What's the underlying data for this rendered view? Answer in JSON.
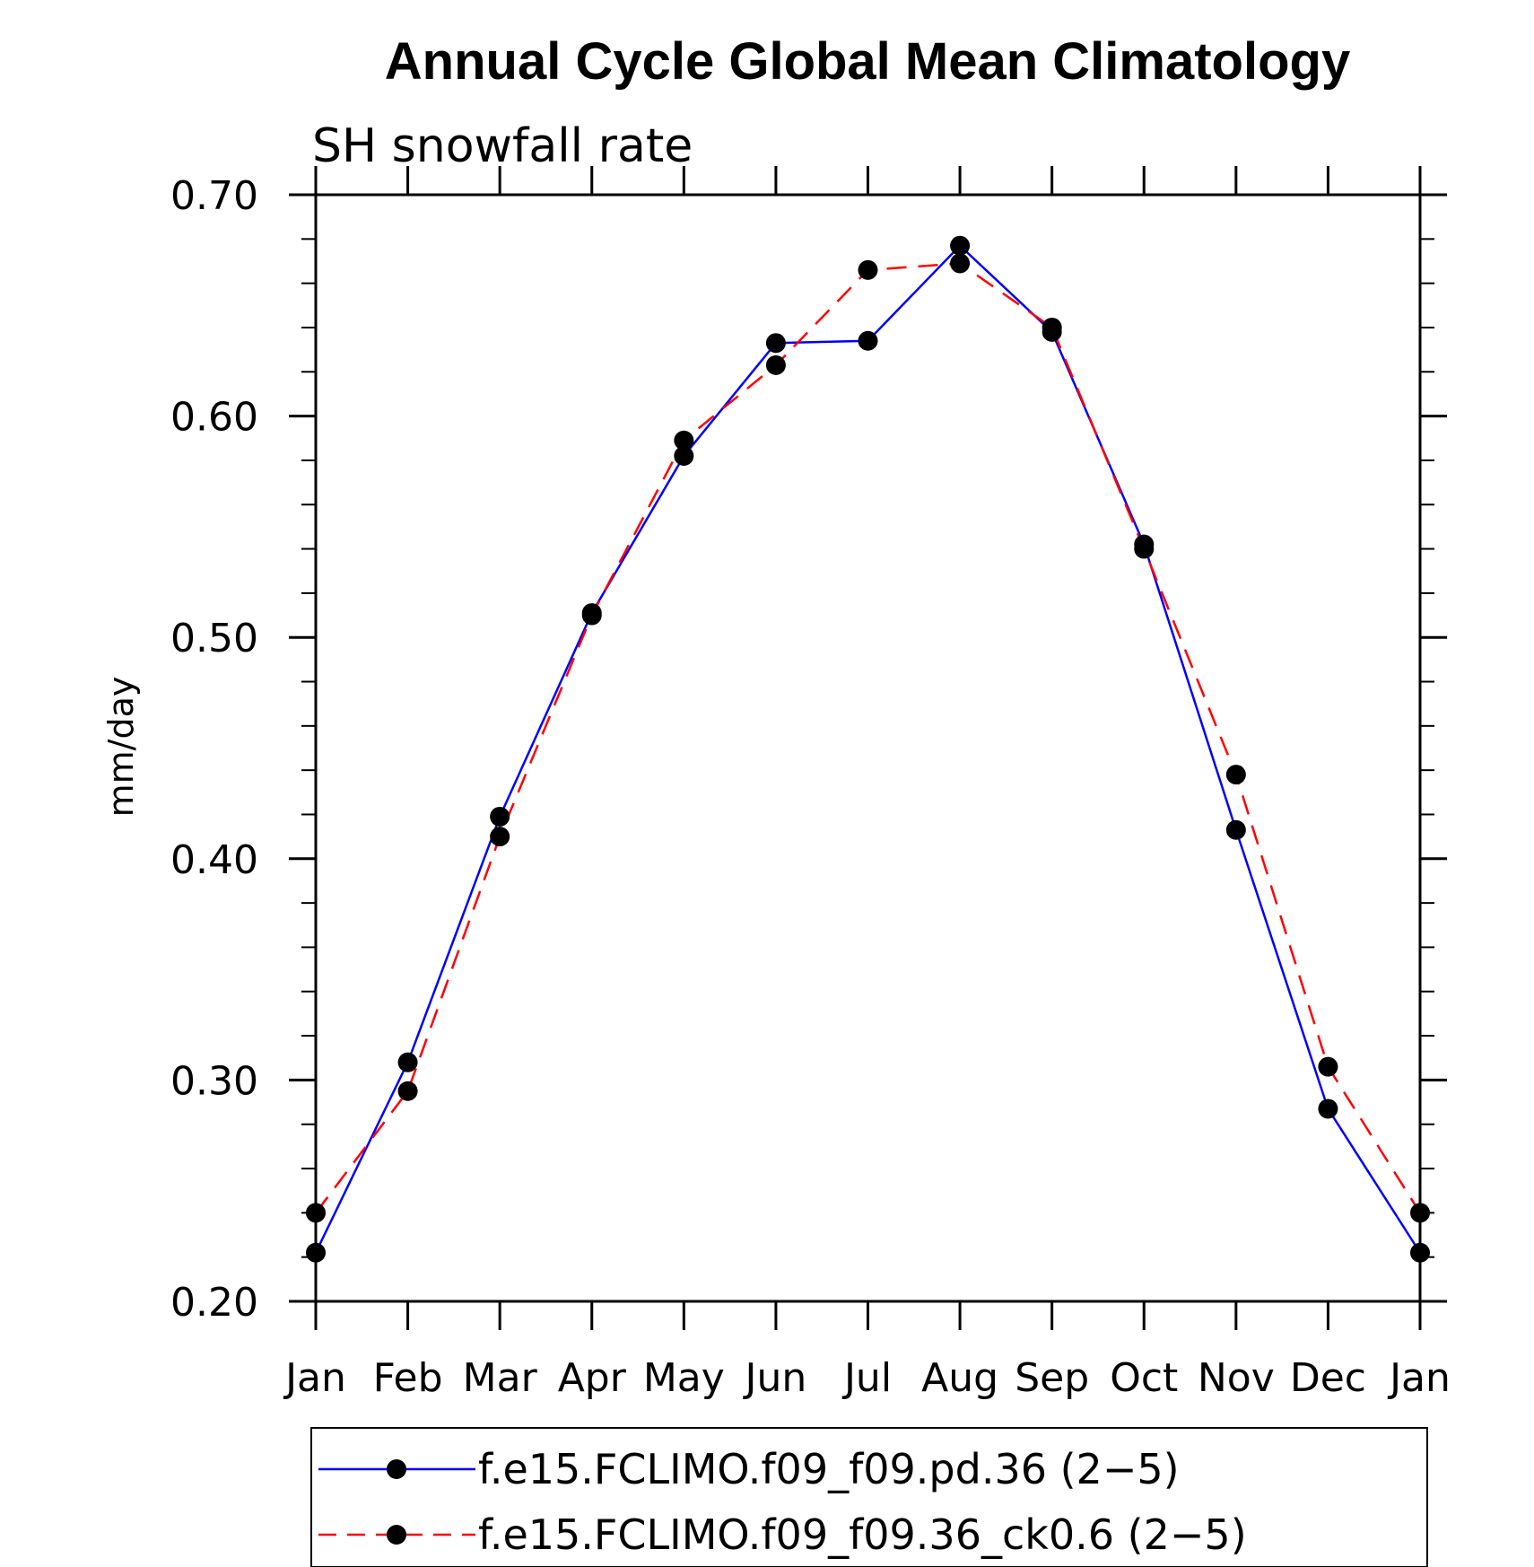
{
  "chart_data": {
    "type": "line",
    "title": "Annual Cycle Global Mean Climatology",
    "subtitle": "SH snowfall rate",
    "ylabel": "mm/day",
    "xlabel": "",
    "categories": [
      "Jan",
      "Feb",
      "Mar",
      "Apr",
      "May",
      "Jun",
      "Jul",
      "Aug",
      "Sep",
      "Oct",
      "Nov",
      "Dec",
      "Jan"
    ],
    "ylim": [
      0.2,
      0.7
    ],
    "yticks": [
      "0.20",
      "0.30",
      "0.40",
      "0.50",
      "0.60",
      "0.70"
    ],
    "ytick_values": [
      0.2,
      0.3,
      0.4,
      0.5,
      0.6,
      0.7
    ],
    "series": [
      {
        "name": "f.e15.FCLIMO.f09_f09.pd.36 (2−5)",
        "color": "#0000ff",
        "style": "solid",
        "values": [
          0.222,
          0.308,
          0.419,
          0.511,
          0.582,
          0.633,
          0.634,
          0.677,
          0.638,
          0.542,
          0.413,
          0.287,
          0.222
        ]
      },
      {
        "name": "f.e15.FCLIMO.f09_f09.36_ck0.6 (2−5)",
        "color": "#ff0000",
        "style": "dashed",
        "values": [
          0.24,
          0.295,
          0.41,
          0.51,
          0.589,
          0.623,
          0.666,
          0.669,
          0.64,
          0.54,
          0.438,
          0.306,
          0.24
        ]
      }
    ],
    "legend_position": "bottom"
  }
}
